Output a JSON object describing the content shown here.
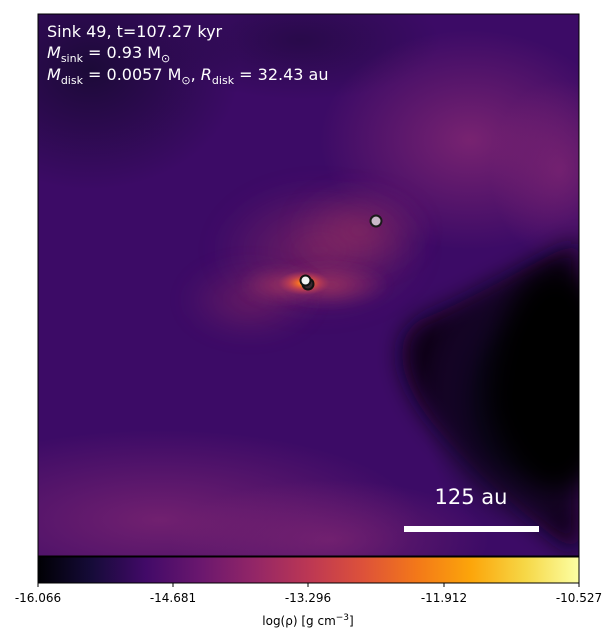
{
  "annotation": {
    "line1": "Sink 49, t=107.27 kyr",
    "msink": {
      "symbol": "M",
      "sub": "sink",
      "rest": " = 0.93 M",
      "sun": "⊙"
    },
    "mdisk": {
      "symbol": "M",
      "sub": "disk",
      "rest": " = 0.0057 M",
      "sun": "⊙"
    },
    "rdisk": {
      "symbol": "R",
      "sub": "disk",
      "rest": " = 32.43 au"
    }
  },
  "scale_bar": {
    "label": "125 au"
  },
  "colorbar": {
    "cmap": "inferno",
    "ticks": [
      "-16.066",
      "-14.681",
      "-13.296",
      "-11.912",
      "-10.527"
    ],
    "label": {
      "pre": "log(ρ) [g cm",
      "exp": "−3",
      "post": "]"
    }
  },
  "sinks": [
    {
      "id": "sink-bright",
      "fill": "#f2f2f2"
    },
    {
      "id": "sink-dark",
      "fill": "#3a2a30"
    },
    {
      "id": "sink-grey",
      "fill": "#c9b8c8"
    }
  ],
  "colors": {
    "background": "#3c0b66",
    "dense_core": "#ff6a2a",
    "void": "#020106"
  }
}
